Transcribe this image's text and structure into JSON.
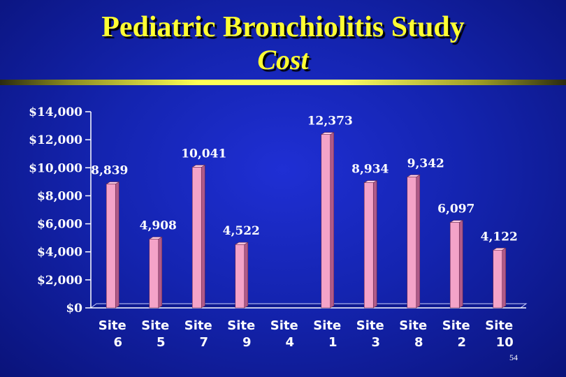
{
  "slide": {
    "title": "Pediatric Bronchiolitis Study",
    "subtitle": "Cost",
    "page_number": "54"
  },
  "colors": {
    "background": "#1424b0",
    "title": "#ffff33",
    "bar_front": "#f4a3c8",
    "bar_side": "#b05a88",
    "text": "#ffffff"
  },
  "chart_data": {
    "type": "bar",
    "title": "",
    "xlabel": "",
    "ylabel": "",
    "ylim": [
      0,
      14000
    ],
    "y_ticks": [
      {
        "value": 0,
        "label": "$0"
      },
      {
        "value": 2000,
        "label": "$2,000"
      },
      {
        "value": 4000,
        "label": "$4,000"
      },
      {
        "value": 6000,
        "label": "$6,000"
      },
      {
        "value": 8000,
        "label": "$8,000"
      },
      {
        "value": 10000,
        "label": "$10,000"
      },
      {
        "value": 12000,
        "label": "$12,000"
      },
      {
        "value": 14000,
        "label": "$14,000"
      }
    ],
    "grid": false,
    "legend": "none",
    "categories": [
      {
        "line1": "Site",
        "line2": "6"
      },
      {
        "line1": "Site",
        "line2": "5"
      },
      {
        "line1": "Site",
        "line2": "7"
      },
      {
        "line1": "Site",
        "line2": "9"
      },
      {
        "line1": "Site",
        "line2": "4"
      },
      {
        "line1": "Site",
        "line2": "1"
      },
      {
        "line1": "Site",
        "line2": "3"
      },
      {
        "line1": "Site",
        "line2": "8"
      },
      {
        "line1": "Site",
        "line2": "2"
      },
      {
        "line1": "Site",
        "line2": "10"
      }
    ],
    "values": [
      8839,
      4908,
      10041,
      4522,
      null,
      12373,
      8934,
      9342,
      6097,
      4122
    ],
    "data_labels": [
      "8,839",
      "4,908",
      "10,041",
      "4,522",
      "",
      "12,373",
      "8,934",
      "9,342",
      "6,097",
      "4,122"
    ]
  }
}
